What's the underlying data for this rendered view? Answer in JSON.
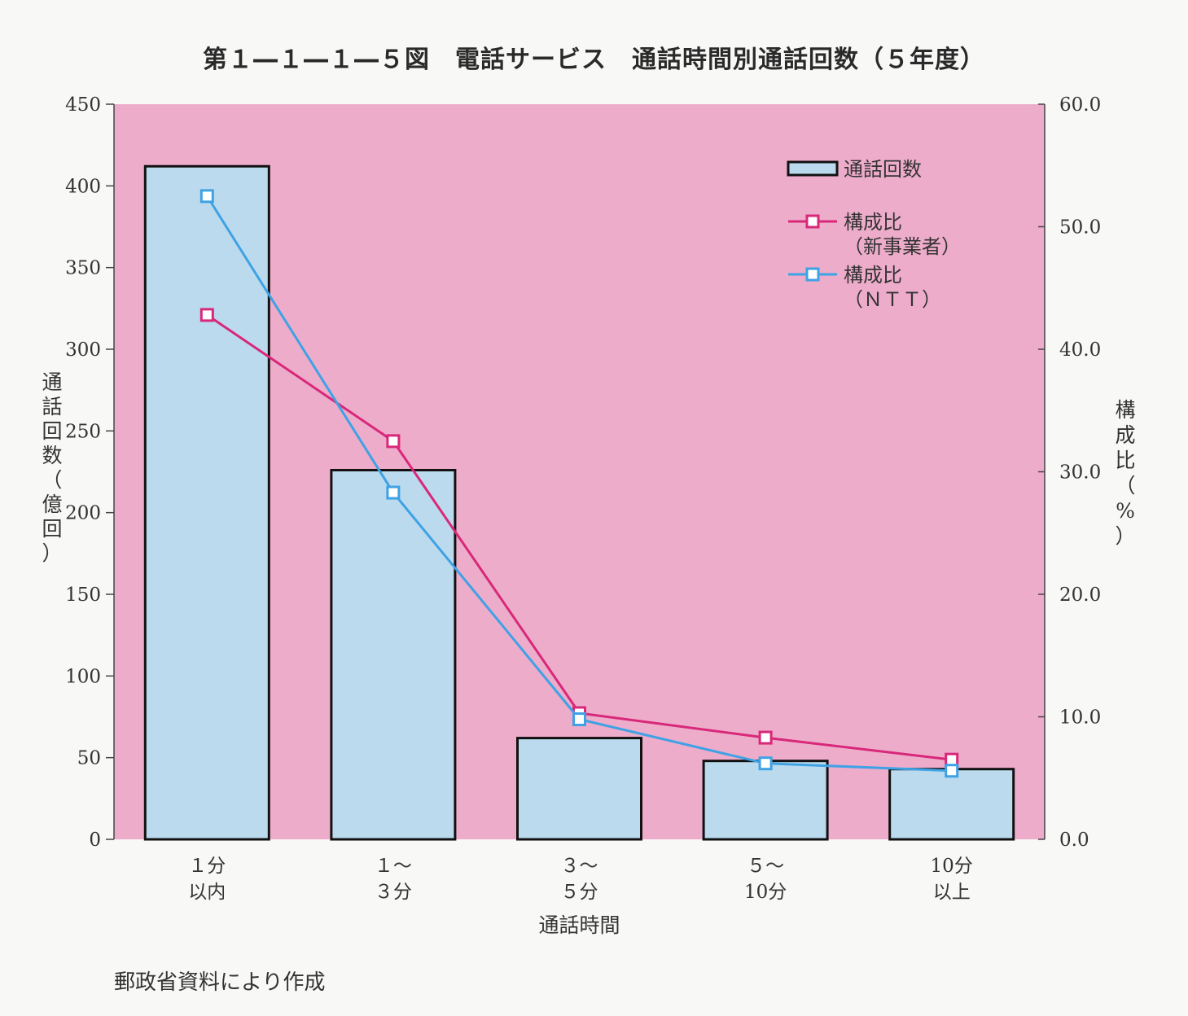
{
  "title": "第１―１―１―５図　電話サービス　通話時間別通話回数（５年度）",
  "source": "郵政省資料により作成",
  "chart_data": {
    "type": "bar",
    "categories": [
      [
        "１分",
        "以内"
      ],
      [
        "１～",
        "３分"
      ],
      [
        "３～",
        "５分"
      ],
      [
        "５～",
        "10分"
      ],
      [
        "10分",
        "以上"
      ]
    ],
    "xlabel": "通話時間",
    "ylabel_left": [
      "通",
      "話",
      "回",
      "数",
      "（",
      "億",
      "回",
      "）"
    ],
    "ylabel_right": [
      "構",
      "成",
      "比",
      "（",
      "%",
      "）"
    ],
    "ylim_left": [
      0,
      450
    ],
    "yticks_left": [
      "0",
      "50",
      "100",
      "150",
      "200",
      "250",
      "300",
      "350",
      "400",
      "450"
    ],
    "ylim_right": [
      0,
      60
    ],
    "yticks_right": [
      "0.0",
      "10.0",
      "20.0",
      "30.0",
      "40.0",
      "50.0",
      "60.0"
    ],
    "bars": {
      "name": "通話回数",
      "axis": "left",
      "values": [
        412,
        226,
        62,
        48,
        43
      ],
      "color": "#bcdaee"
    },
    "series": [
      {
        "name": [
          "構成比",
          "（新事業者）"
        ],
        "axis": "right",
        "values": [
          42.8,
          32.5,
          10.3,
          8.3,
          6.5
        ],
        "color": "#d8287a"
      },
      {
        "name": [
          "構成比",
          "（ＮＴＴ）"
        ],
        "axis": "right",
        "values": [
          52.5,
          28.3,
          9.8,
          6.2,
          5.6
        ],
        "color": "#3fa2e4"
      }
    ],
    "plot_background": "#eeaccb",
    "legend_position": "top-right",
    "grid": false
  }
}
